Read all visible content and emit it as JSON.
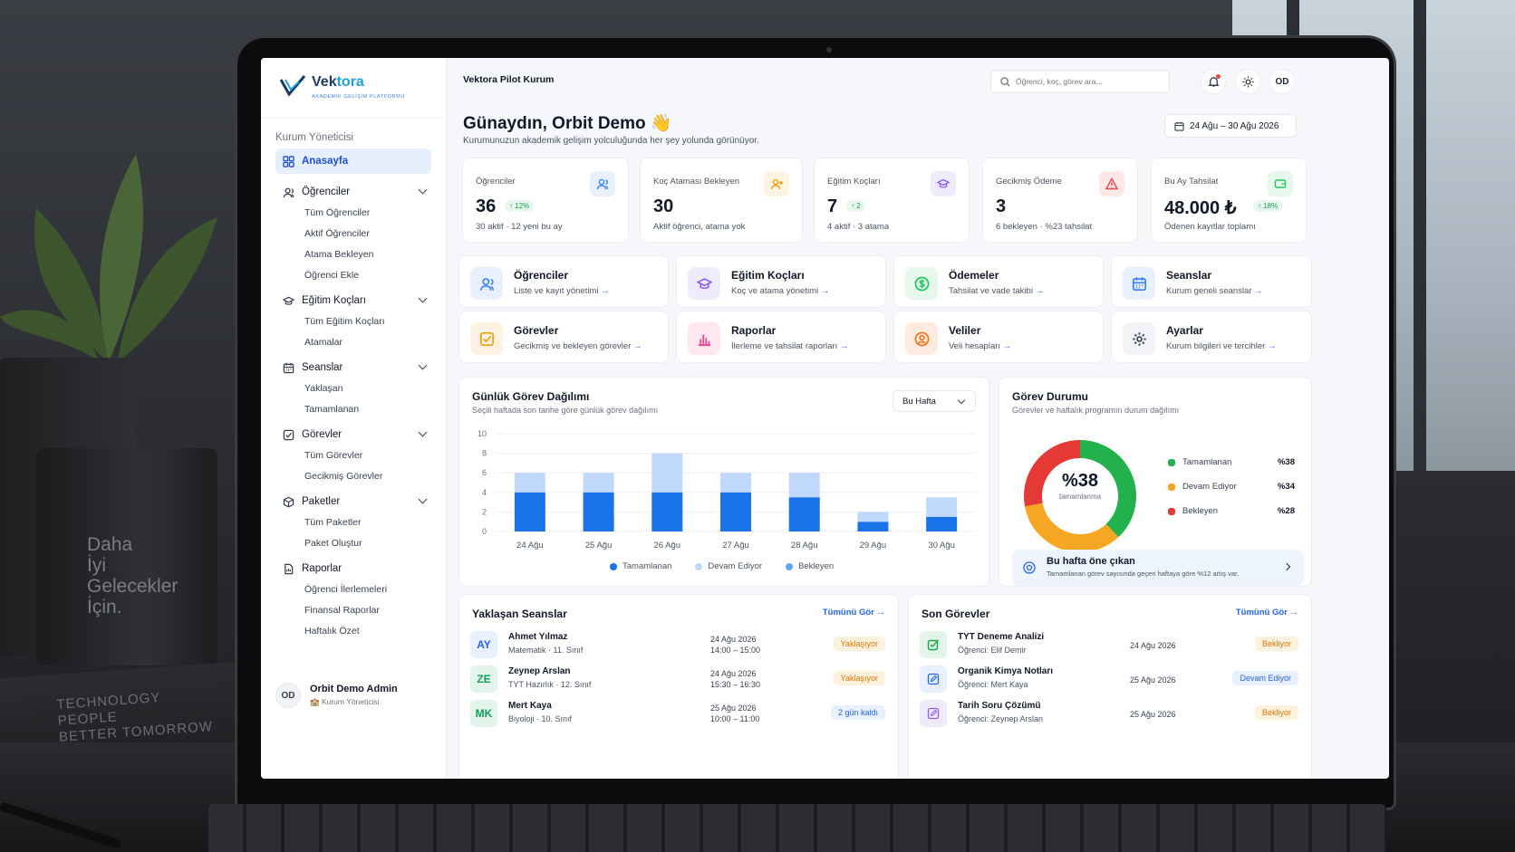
{
  "brand": {
    "name_a": "Vek",
    "name_b": "tora",
    "tagline": "AKADEMİK GELİŞİM PLATFORMU"
  },
  "backdrop": {
    "mug_text": [
      "Daha",
      "İyi",
      "Gelecekler",
      "İçin."
    ],
    "book_text": [
      "TECHNOLOGY",
      "PEOPLE",
      "BETTER TOMORROW"
    ]
  },
  "sidebar": {
    "role": "Kurum Yöneticisi",
    "active": "Anasayfa",
    "groups": [
      {
        "label": "Öğrenciler",
        "icon": "users-icon",
        "items": [
          "Tüm Öğrenciler",
          "Aktif Öğrenciler",
          "Atama Bekleyen",
          "Öğrenci Ekle"
        ]
      },
      {
        "label": "Eğitim Koçları",
        "icon": "graduation-cap-icon",
        "items": [
          "Tüm Eğitim Koçları",
          "Atamalar"
        ]
      },
      {
        "label": "Seanslar",
        "icon": "calendar-icon",
        "items": [
          "Yaklaşan",
          "Tamamlanan"
        ]
      },
      {
        "label": "Görevler",
        "icon": "checkbox-icon",
        "items": [
          "Tüm Görevler",
          "Gecikmiş Görevler"
        ]
      },
      {
        "label": "Paketler",
        "icon": "package-icon",
        "items": [
          "Tüm Paketler",
          "Paket Oluştur"
        ]
      },
      {
        "label": "Raporlar",
        "icon": "report-icon",
        "items": [
          "Öğrenci İlerlemeleri",
          "Finansal Raporlar",
          "Haftalık Özet"
        ]
      }
    ],
    "user": {
      "initials": "OD",
      "name": "Orbit Demo Admin",
      "role": "Kurum Yöneticisi"
    }
  },
  "topbar": {
    "institution": "Vektora Pilot Kurum",
    "search_placeholder": "Öğrenci, koç, görev ara...",
    "avatar": "OD"
  },
  "header": {
    "greeting": "Günaydın, Orbit Demo 👋",
    "subtitle": "Kurumunuzun akademik gelişim yolculuğunda her şey yolunda görünüyor.",
    "date_range": "24 Ağu – 30 Ağu 2026"
  },
  "stats": [
    {
      "label": "Öğrenciler",
      "value": "36",
      "badge": "↑ 12%",
      "sub": "30 aktif · 12 yeni bu ay",
      "icon": "users-icon",
      "color": "#3b82f6",
      "bg": "#e8f0fd"
    },
    {
      "label": "Koç Ataması Bekleyen",
      "value": "30",
      "badge": "",
      "sub": "Aktif öğrenci, atama yok",
      "icon": "user-plus-icon",
      "color": "#f59e0b",
      "bg": "#fdf3e2"
    },
    {
      "label": "Eğitim Koçları",
      "value": "7",
      "badge": "↑ 2",
      "sub": "4 aktif · 3 atama",
      "icon": "graduation-cap-icon",
      "color": "#8b5cf6",
      "bg": "#f0eafd"
    },
    {
      "label": "Gecikmiş Ödeme",
      "value": "3",
      "badge": "",
      "sub": "6 bekleyen · %23 tahsilat",
      "icon": "alert-icon",
      "color": "#ef4444",
      "bg": "#fde8e8"
    },
    {
      "label": "Bu Ay Tahsilat",
      "value": "48.000 ₺",
      "badge": "↑ 18%",
      "sub": "Ödenen kayıtlar toplamı",
      "icon": "wallet-icon",
      "color": "#22c55e",
      "bg": "#e6f7ec"
    }
  ],
  "quick": [
    {
      "title": "Öğrenciler",
      "sub": "Liste ve kayıt yönetimi",
      "icon": "users-icon",
      "color": "#3b82f6",
      "bg": "#e8f0fd"
    },
    {
      "title": "Eğitim Koçları",
      "sub": "Koç ve atama yönetimi",
      "icon": "graduation-cap-icon",
      "color": "#8b5cf6",
      "bg": "#f0eafd"
    },
    {
      "title": "Ödemeler",
      "sub": "Tahsilat ve vade takibi",
      "icon": "money-icon",
      "color": "#22c55e",
      "bg": "#e6f7ec"
    },
    {
      "title": "Seanslar",
      "sub": "Kurum geneli seanslar",
      "icon": "calendar-icon",
      "color": "#3b82f6",
      "bg": "#e8f0fd"
    },
    {
      "title": "Görevler",
      "sub": "Gecikmiş ve bekleyen görevler",
      "icon": "checkbox-icon",
      "color": "#f59e0b",
      "bg": "#fdf1e2"
    },
    {
      "title": "Raporlar",
      "sub": "İlerleme ve tahsilat raporları",
      "icon": "bar-chart-icon",
      "color": "#ec4899",
      "bg": "#fde8f1"
    },
    {
      "title": "Veliler",
      "sub": "Veli hesapları",
      "icon": "parent-icon",
      "color": "#f97316",
      "bg": "#fdebe0"
    },
    {
      "title": "Ayarlar",
      "sub": "Kurum bilgileri ve tercihler",
      "icon": "gear-icon",
      "color": "#374151",
      "bg": "#f1f3f6"
    }
  ],
  "daily": {
    "title": "Günlük Görev Dağılımı",
    "subtitle": "Seçili haftada son tarihe göre günlük görev dağılımı",
    "period": "Bu Hafta"
  },
  "chart_data": {
    "type": "bar",
    "stacked": true,
    "categories": [
      "24 Ağu",
      "25 Ağu",
      "26 Ağu",
      "27 Ağu",
      "28 Ağu",
      "29 Ağu",
      "30 Ağu"
    ],
    "series": [
      {
        "name": "Tamamlanan",
        "values": [
          4,
          4,
          4,
          4,
          3.5,
          1,
          1.5
        ],
        "color": "#1a73e8"
      },
      {
        "name": "Devam Ediyor",
        "values": [
          2,
          2,
          4,
          2,
          2.5,
          1,
          2
        ],
        "color": "#bfd8fb"
      },
      {
        "name": "Bekleyen",
        "values": [
          0,
          0,
          0,
          0,
          0,
          0,
          0
        ],
        "color": "#60a5fa"
      }
    ],
    "ylim": [
      0,
      10
    ],
    "yticks": [
      0,
      2,
      4,
      6,
      8,
      10
    ],
    "grid": true,
    "legend": "bottom"
  },
  "status": {
    "title": "Görev Durumu",
    "subtitle": "Görevler ve haftalık programın durum dağılımı",
    "center_value": "%38",
    "center_label": "tamamlanma",
    "segments": [
      {
        "name": "Tamamlanan",
        "pct": "%38",
        "value": 38,
        "color": "#22b14c"
      },
      {
        "name": "Devam Ediyor",
        "pct": "%34",
        "value": 34,
        "color": "#f5a623"
      },
      {
        "name": "Bekleyen",
        "pct": "%28",
        "value": 28,
        "color": "#e53935"
      }
    ],
    "highlight_title": "Bu hafta öne çıkan",
    "highlight_sub": "Tamamlanan görev sayısında geçen haftaya göre %12 artış var."
  },
  "upcoming": {
    "title": "Yaklaşan Seanslar",
    "link": "Tümünü Gör →",
    "rows": [
      {
        "initials": "AY",
        "name": "Ahmet Yılmaz",
        "sub": "Matematik · 11. Sınıf",
        "date": "24 Ağu 2026",
        "time": "14:00 – 15:00",
        "status": "Yaklaşıyor",
        "tone": "warn",
        "av_color": "#2563eb",
        "av_bg": "#e8f0fd"
      },
      {
        "initials": "ZE",
        "name": "Zeynep Arslan",
        "sub": "TYT Hazırlık · 12. Sınıf",
        "date": "24 Ağu 2026",
        "time": "15:30 – 16:30",
        "status": "Yaklaşıyor",
        "tone": "warn",
        "av_color": "#0f9d58",
        "av_bg": "#e3f5ea"
      },
      {
        "initials": "MK",
        "name": "Mert Kaya",
        "sub": "Biyoloji · 10. Sınıf",
        "date": "25 Ağu 2026",
        "time": "10:00 – 11:00",
        "status": "2 gün kaldı",
        "tone": "info",
        "av_color": "#0f9d58",
        "av_bg": "#e3f5ea"
      }
    ]
  },
  "recent": {
    "title": "Son Görevler",
    "link": "Tümünü Gör →",
    "rows": [
      {
        "name": "TYT Deneme Analizi",
        "sub": "Öğrenci: Elif Demir",
        "date": "24 Ağu 2026",
        "status": "Bekliyor",
        "tone": "warn",
        "icon": "check-square-icon",
        "av_color": "#16a34a",
        "av_bg": "#e3f5ea"
      },
      {
        "name": "Organik Kimya Notları",
        "sub": "Öğrenci: Mert Kaya",
        "date": "25 Ağu 2026",
        "status": "Devam Ediyor",
        "tone": "info",
        "icon": "edit-icon",
        "av_color": "#2563eb",
        "av_bg": "#e8f0fd"
      },
      {
        "name": "Tarih Soru Çözümü",
        "sub": "Öğrenci: Zeynep Arslan",
        "date": "25 Ağu 2026",
        "status": "Bekliyor",
        "tone": "warn",
        "icon": "edit-icon",
        "av_color": "#8b5cf6",
        "av_bg": "#f0eafd"
      }
    ]
  }
}
